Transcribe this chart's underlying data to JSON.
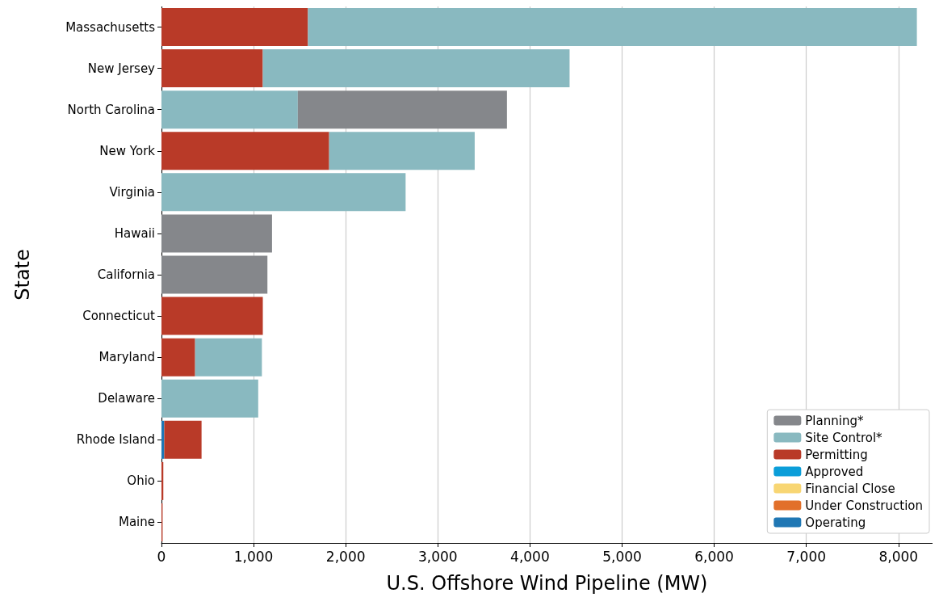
{
  "chart_data": {
    "type": "bar",
    "orientation": "horizontal",
    "stacked": true,
    "xlabel": "U.S. Offshore Wind Pipeline (MW)",
    "ylabel": "State",
    "categories": [
      "Massachusetts",
      "New Jersey",
      "North Carolina",
      "New York",
      "Virginia",
      "Hawaii",
      "California",
      "Connecticut",
      "Maryland",
      "Delaware",
      "Rhode Island",
      "Ohio",
      "Maine"
    ],
    "series": [
      {
        "name": "Operating",
        "color": "#1f77b4",
        "values": [
          null,
          null,
          null,
          null,
          null,
          null,
          null,
          null,
          null,
          null,
          30,
          null,
          null
        ]
      },
      {
        "name": "Under Construction",
        "color": "#e2702a",
        "values": [
          null,
          null,
          null,
          null,
          null,
          null,
          null,
          null,
          null,
          null,
          null,
          null,
          null
        ]
      },
      {
        "name": "Financial Close",
        "color": "#f8d673",
        "values": [
          null,
          null,
          null,
          null,
          null,
          null,
          null,
          null,
          null,
          null,
          null,
          null,
          null
        ]
      },
      {
        "name": "Approved",
        "color": "#0b9ed9",
        "values": [
          null,
          null,
          null,
          null,
          null,
          null,
          null,
          null,
          null,
          null,
          null,
          null,
          null
        ]
      },
      {
        "name": "Permitting",
        "color": "#b93a28",
        "values": [
          1590,
          1100,
          null,
          1820,
          null,
          null,
          null,
          1100,
          365,
          null,
          405,
          20,
          12
        ]
      },
      {
        "name": "Site Control*",
        "color": "#89b9c0",
        "values": [
          6610,
          3330,
          1480,
          1580,
          2650,
          null,
          null,
          null,
          725,
          1050,
          null,
          null,
          null
        ]
      },
      {
        "name": "Planning*",
        "color": "#85878b",
        "values": [
          null,
          null,
          2270,
          null,
          null,
          1200,
          1150,
          null,
          null,
          null,
          null,
          null,
          null
        ]
      }
    ],
    "xlim": [
      0,
      8370
    ],
    "xticks": [
      0,
      {
        "value": 1000,
        "label": "1,000"
      },
      {
        "value": 2000,
        "label": "2,000"
      },
      {
        "value": 3000,
        "label": "3,000"
      },
      {
        "value": 4000,
        "label": "4,000"
      },
      {
        "value": 5000,
        "label": "5,000"
      },
      {
        "value": 6000,
        "label": "6,000"
      },
      {
        "value": 7000,
        "label": "7,000"
      },
      {
        "value": 8000,
        "label": "8,000"
      }
    ],
    "grid": "x",
    "legend": "bottom right"
  }
}
